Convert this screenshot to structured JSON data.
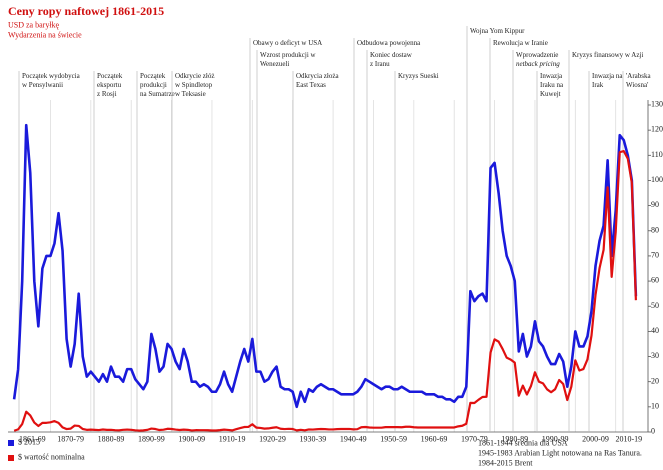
{
  "chart_data": {
    "type": "line",
    "title": "Ceny ropy naftowej 1861-2015",
    "subtitle": "USD za baryłkę",
    "subtitle2": "Wydarzenia na świecie",
    "annotations": [
      {
        "lines": [
          "Początek wydobycia",
          "w Pensylwanii"
        ]
      },
      {
        "lines": [
          "Początek",
          "eksportu",
          "z Rosji"
        ]
      },
      {
        "lines": [
          "Początek",
          "produkcji",
          "na Sumatrze"
        ]
      },
      {
        "lines": [
          "Odkrycie złóż",
          "w Spindletop",
          "w Teksasie"
        ]
      },
      {
        "lines": [
          "Obawy o deficyt w USA"
        ]
      },
      {
        "lines": [
          "Wzrost produkcji w",
          "Wenezueli"
        ]
      },
      {
        "lines": [
          "Odkrycia złoża",
          "East Texas"
        ]
      },
      {
        "lines": [
          "Odbudowa powojenna"
        ]
      },
      {
        "lines": [
          "Koniec dostaw",
          "z Iranu"
        ]
      },
      {
        "lines": [
          "Kryzys Sueski"
        ]
      },
      {
        "lines": [
          "Wojna Yom Kippur"
        ]
      },
      {
        "lines": [
          "Rewolucja w Iranie"
        ]
      },
      {
        "lines": [
          "Wprowadzenie",
          "netback pricing"
        ]
      },
      {
        "lines": [
          "Inwazja",
          "Iraku na",
          "Kuwejt"
        ]
      },
      {
        "lines": [
          "Kryzys finansowy w Azji"
        ]
      },
      {
        "lines": [
          "Inwazja na",
          "Irak"
        ]
      },
      {
        "lines": [
          "'Arabska",
          "Wiosna'"
        ]
      }
    ],
    "notes": [
      "1861-1944 średnia dla USA",
      "1945-1983 Arabian Light notowana na Ras Tanura.",
      "1984-2015 Brent"
    ],
    "x": [
      1861,
      1862,
      1863,
      1864,
      1865,
      1866,
      1867,
      1868,
      1869,
      1870,
      1871,
      1872,
      1873,
      1874,
      1875,
      1876,
      1877,
      1878,
      1879,
      1880,
      1881,
      1882,
      1883,
      1884,
      1885,
      1886,
      1887,
      1888,
      1889,
      1890,
      1891,
      1892,
      1893,
      1894,
      1895,
      1896,
      1897,
      1898,
      1899,
      1900,
      1901,
      1902,
      1903,
      1904,
      1905,
      1906,
      1907,
      1908,
      1909,
      1910,
      1911,
      1912,
      1913,
      1914,
      1915,
      1916,
      1917,
      1918,
      1919,
      1920,
      1921,
      1922,
      1923,
      1924,
      1925,
      1926,
      1927,
      1928,
      1929,
      1930,
      1931,
      1932,
      1933,
      1934,
      1935,
      1936,
      1937,
      1938,
      1939,
      1940,
      1941,
      1942,
      1943,
      1944,
      1945,
      1946,
      1947,
      1948,
      1949,
      1950,
      1951,
      1952,
      1953,
      1954,
      1955,
      1956,
      1957,
      1958,
      1959,
      1960,
      1961,
      1962,
      1963,
      1964,
      1965,
      1966,
      1967,
      1968,
      1969,
      1970,
      1971,
      1972,
      1973,
      1974,
      1975,
      1976,
      1977,
      1978,
      1979,
      1980,
      1981,
      1982,
      1983,
      1984,
      1985,
      1986,
      1987,
      1988,
      1989,
      1990,
      1991,
      1992,
      1993,
      1994,
      1995,
      1996,
      1997,
      1998,
      1999,
      2000,
      2001,
      2002,
      2003,
      2004,
      2005,
      2006,
      2007,
      2008,
      2009,
      2010,
      2011,
      2012,
      2013,
      2014,
      2015
    ],
    "series": [
      {
        "name": "$ 2015",
        "color": "#1a1adb",
        "values": [
          13,
          25,
          60,
          122,
          103,
          60,
          42,
          65,
          70,
          70,
          75,
          87,
          72,
          37,
          26,
          35,
          55,
          30,
          22,
          24,
          22,
          20,
          23,
          20,
          26,
          22,
          22,
          20,
          25,
          25,
          21,
          19,
          17,
          20,
          39,
          33,
          24,
          26,
          35,
          33,
          28,
          25,
          33,
          28,
          20,
          20,
          18,
          19,
          18,
          16,
          16,
          19,
          24,
          19,
          16,
          22,
          28,
          33,
          28,
          37,
          24,
          24,
          20,
          21,
          24,
          26,
          18,
          17,
          17,
          16,
          10,
          16,
          12,
          17,
          16,
          18,
          19,
          18,
          17,
          17,
          16,
          15,
          15,
          15,
          15,
          16,
          18,
          21,
          20,
          19,
          18,
          17,
          18,
          18,
          17,
          17,
          18,
          17,
          16,
          16,
          16,
          16,
          15,
          15,
          15,
          14,
          14,
          13,
          13,
          12,
          14,
          14,
          18,
          56,
          52,
          54,
          55,
          52,
          105,
          107,
          95,
          80,
          70,
          66,
          60,
          32,
          39,
          30,
          34,
          44,
          36,
          34,
          30,
          27,
          27,
          31,
          28,
          18,
          26,
          40,
          34,
          34,
          38,
          48,
          66,
          76,
          82,
          108,
          70,
          88,
          118,
          116,
          110,
          100,
          54
        ]
      },
      {
        "name": "$ wartość nominalna",
        "color": "#e01010",
        "values": [
          0.49,
          1.05,
          3.15,
          8.06,
          6.59,
          3.74,
          2.41,
          3.63,
          3.64,
          3.86,
          4.34,
          3.64,
          1.83,
          1.17,
          1.35,
          2.56,
          2.42,
          1.19,
          0.86,
          0.95,
          0.86,
          0.78,
          1.0,
          0.84,
          0.88,
          0.71,
          0.67,
          0.88,
          0.94,
          0.87,
          0.67,
          0.56,
          0.64,
          0.84,
          1.36,
          1.18,
          0.79,
          0.91,
          1.29,
          1.19,
          0.96,
          0.8,
          0.94,
          0.86,
          0.62,
          0.73,
          0.72,
          0.72,
          0.7,
          0.61,
          0.61,
          0.74,
          0.95,
          0.81,
          0.64,
          1.1,
          1.56,
          1.98,
          2.01,
          3.07,
          1.73,
          1.61,
          1.34,
          1.43,
          1.68,
          1.88,
          1.3,
          1.17,
          1.27,
          1.19,
          0.65,
          0.87,
          0.67,
          1.0,
          0.97,
          1.09,
          1.18,
          1.13,
          1.02,
          1.02,
          1.14,
          1.19,
          1.2,
          1.21,
          1.05,
          1.12,
          1.9,
          1.99,
          1.78,
          1.71,
          1.71,
          1.71,
          1.93,
          1.93,
          1.93,
          1.93,
          1.9,
          2.08,
          2.08,
          1.9,
          1.8,
          1.8,
          1.8,
          1.8,
          1.8,
          1.8,
          1.8,
          1.8,
          1.8,
          1.8,
          2.24,
          2.48,
          3.29,
          11.58,
          11.53,
          12.8,
          13.92,
          14.02,
          31.61,
          36.83,
          35.93,
          32.97,
          29.55,
          28.78,
          27.56,
          14.43,
          18.44,
          14.92,
          18.23,
          23.73,
          20.0,
          19.32,
          16.97,
          15.82,
          17.02,
          20.67,
          19.09,
          12.72,
          17.97,
          28.5,
          24.44,
          25.02,
          28.83,
          38.27,
          54.52,
          65.14,
          72.39,
          97.26,
          61.67,
          79.5,
          111.26,
          111.67,
          108.66,
          98.95,
          52.39
        ]
      }
    ],
    "xlim": [
      1858,
      2018
    ],
    "xticks": [
      {
        "value": 1861,
        "label": "1861-69"
      },
      {
        "value": 1870,
        "label": "1870-79"
      },
      {
        "value": 1880,
        "label": "1880-89"
      },
      {
        "value": 1890,
        "label": "1890-99"
      },
      {
        "value": 1900,
        "label": "1900-09"
      },
      {
        "value": 1910,
        "label": "1910-19"
      },
      {
        "value": 1920,
        "label": "1920-29"
      },
      {
        "value": 1930,
        "label": "1930-39"
      },
      {
        "value": 1940,
        "label": "1940-49"
      },
      {
        "value": 1950,
        "label": "1950-59"
      },
      {
        "value": 1960,
        "label": "1960-69"
      },
      {
        "value": 1970,
        "label": "1970-79"
      },
      {
        "value": 1980,
        "label": "1980-89"
      },
      {
        "value": 1990,
        "label": "1990-99"
      },
      {
        "value": 2000,
        "label": "2000-09"
      },
      {
        "value": 2010,
        "label": "2010-19"
      }
    ],
    "ylim": [
      0,
      130
    ],
    "yticks": [
      0,
      10,
      20,
      30,
      40,
      50,
      60,
      70,
      80,
      90,
      100,
      110,
      120,
      130
    ],
    "grid": true
  }
}
